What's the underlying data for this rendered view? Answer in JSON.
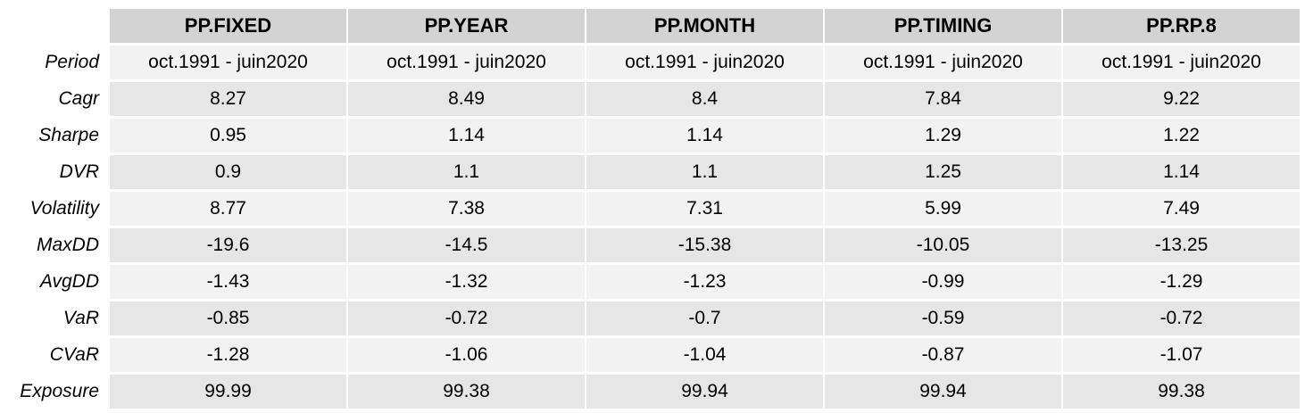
{
  "table": {
    "columns": [
      "PP.FIXED",
      "PP.YEAR",
      "PP.MONTH",
      "PP.TIMING",
      "PP.RP.8"
    ],
    "rows": [
      {
        "label": "Period",
        "values": [
          "oct.1991 - juin2020",
          "oct.1991 - juin2020",
          "oct.1991 - juin2020",
          "oct.1991 - juin2020",
          "oct.1991 - juin2020"
        ]
      },
      {
        "label": "Cagr",
        "values": [
          "8.27",
          "8.49",
          "8.4",
          "7.84",
          "9.22"
        ]
      },
      {
        "label": "Sharpe",
        "values": [
          "0.95",
          "1.14",
          "1.14",
          "1.29",
          "1.22"
        ]
      },
      {
        "label": "DVR",
        "values": [
          "0.9",
          "1.1",
          "1.1",
          "1.25",
          "1.14"
        ]
      },
      {
        "label": "Volatility",
        "values": [
          "8.77",
          "7.38",
          "7.31",
          "5.99",
          "7.49"
        ]
      },
      {
        "label": "MaxDD",
        "values": [
          "-19.6",
          "-14.5",
          "-15.38",
          "-10.05",
          "-13.25"
        ]
      },
      {
        "label": "AvgDD",
        "values": [
          "-1.43",
          "-1.32",
          "-1.23",
          "-0.99",
          "-1.29"
        ]
      },
      {
        "label": "VaR",
        "values": [
          "-0.85",
          "-0.72",
          "-0.7",
          "-0.59",
          "-0.72"
        ]
      },
      {
        "label": "CVaR",
        "values": [
          "-1.28",
          "-1.06",
          "-1.04",
          "-0.87",
          "-1.07"
        ]
      },
      {
        "label": "Exposure",
        "values": [
          "99.99",
          "99.38",
          "99.94",
          "99.94",
          "99.38"
        ]
      }
    ]
  },
  "colors": {
    "header_bg": "#d3d3d3",
    "row_light": "#f2f2f2",
    "row_dark": "#e6e6e6"
  }
}
